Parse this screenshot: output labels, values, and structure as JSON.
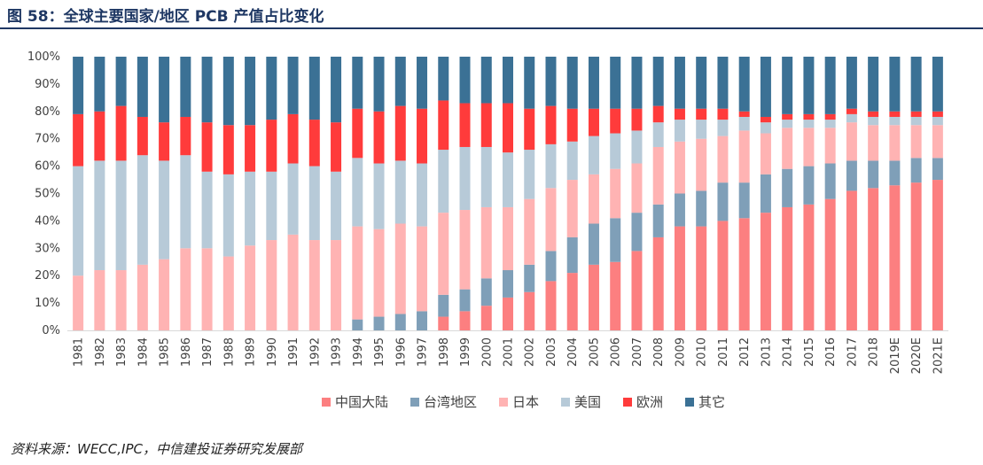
{
  "header": {
    "title": "图 58：全球主要国家/地区 PCB 产值占比变化"
  },
  "footer": {
    "source": "资料来源：WECC,IPC，中信建投证券研究发展部"
  },
  "chart_data": {
    "type": "bar",
    "stacked": true,
    "percent": true,
    "title": "图 58：全球主要国家/地区 PCB 产值占比变化",
    "xlabel": "",
    "ylabel": "",
    "ylim": [
      0,
      100
    ],
    "yticks": [
      "0%",
      "10%",
      "20%",
      "30%",
      "40%",
      "50%",
      "60%",
      "70%",
      "80%",
      "90%",
      "100%"
    ],
    "legend_position": "bottom",
    "categories": [
      "1981",
      "1982",
      "1983",
      "1984",
      "1985",
      "1986",
      "1987",
      "1988",
      "1989",
      "1990",
      "1991",
      "1992",
      "1993",
      "1994",
      "1995",
      "1996",
      "1997",
      "1998",
      "1999",
      "2000",
      "2001",
      "2002",
      "2003",
      "2004",
      "2005",
      "2006",
      "2007",
      "2008",
      "2009",
      "2010",
      "2011",
      "2012",
      "2013",
      "2014",
      "2015",
      "2016",
      "2017",
      "2018",
      "2019E",
      "2020E",
      "2021E"
    ],
    "series": [
      {
        "name": "中国大陆",
        "color": "#fc7f80",
        "values": [
          0,
          0,
          0,
          0,
          0,
          0,
          0,
          0,
          0,
          0,
          0,
          0,
          0,
          0,
          0,
          0,
          0,
          5,
          7,
          9,
          12,
          14,
          18,
          21,
          24,
          25,
          29,
          34,
          38,
          38,
          40,
          41,
          43,
          45,
          46,
          48,
          51,
          52,
          53,
          54,
          55
        ]
      },
      {
        "name": "台湾地区",
        "color": "#7f9fb8",
        "values": [
          0,
          0,
          0,
          0,
          0,
          0,
          0,
          0,
          0,
          0,
          0,
          0,
          0,
          4,
          5,
          6,
          7,
          8,
          8,
          10,
          10,
          10,
          11,
          13,
          15,
          16,
          14,
          12,
          12,
          13,
          14,
          13,
          14,
          14,
          14,
          13,
          11,
          10,
          9,
          9,
          8
        ]
      },
      {
        "name": "日本",
        "color": "#ffb3b3",
        "values": [
          20,
          22,
          22,
          24,
          26,
          30,
          30,
          27,
          31,
          33,
          35,
          33,
          33,
          34,
          32,
          33,
          31,
          30,
          29,
          26,
          23,
          24,
          23,
          21,
          18,
          18,
          18,
          21,
          19,
          19,
          17,
          19,
          15,
          15,
          14,
          13,
          14,
          13,
          13,
          12,
          12
        ]
      },
      {
        "name": "美国",
        "color": "#b7cad8",
        "values": [
          40,
          40,
          40,
          40,
          36,
          34,
          28,
          30,
          27,
          25,
          26,
          27,
          25,
          25,
          24,
          23,
          23,
          23,
          23,
          22,
          20,
          18,
          16,
          14,
          14,
          13,
          12,
          9,
          8,
          7,
          6,
          5,
          4,
          3,
          3,
          3,
          3,
          3,
          3,
          3,
          3
        ]
      },
      {
        "name": "欧洲",
        "color": "#ff3b3b",
        "values": [
          19,
          18,
          20,
          14,
          14,
          14,
          18,
          18,
          17,
          19,
          18,
          17,
          18,
          18,
          19,
          20,
          20,
          18,
          16,
          16,
          18,
          15,
          14,
          12,
          10,
          9,
          8,
          6,
          4,
          4,
          4,
          2,
          2,
          2,
          2,
          2,
          2,
          2,
          2,
          2,
          2
        ]
      },
      {
        "name": "其它",
        "color": "#3b7195",
        "values": [
          21,
          20,
          18,
          22,
          24,
          22,
          24,
          25,
          25,
          23,
          21,
          23,
          24,
          19,
          20,
          18,
          19,
          16,
          17,
          17,
          17,
          19,
          18,
          19,
          19,
          19,
          19,
          18,
          19,
          19,
          19,
          20,
          22,
          21,
          21,
          21,
          19,
          20,
          20,
          20,
          20
        ]
      }
    ]
  }
}
